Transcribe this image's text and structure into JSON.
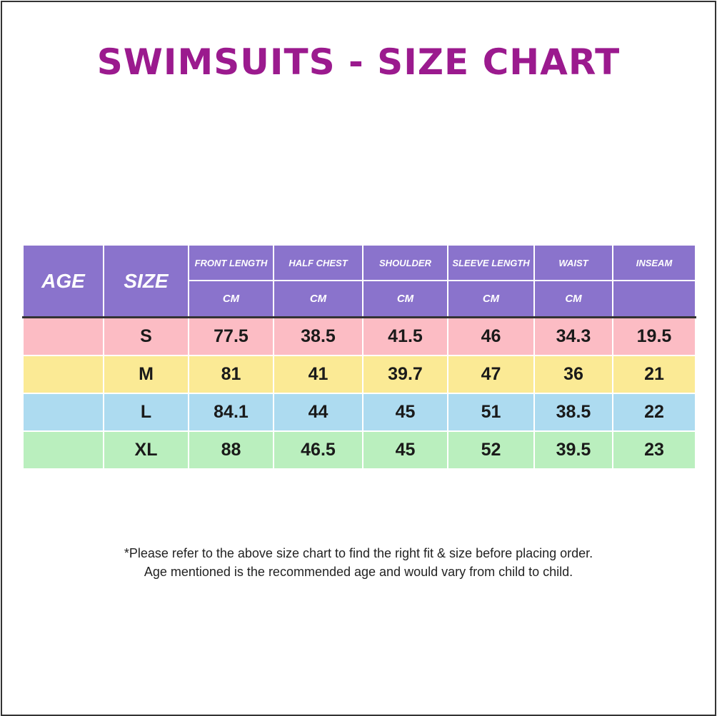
{
  "title": "SWIMSUITS - SIZE CHART",
  "colors": {
    "title": "#9b1a8e",
    "header": "#8a73cc",
    "row_s": "#fcbcc4",
    "row_m": "#fbea95",
    "row_l": "#addbf0",
    "row_xl": "#baefbe"
  },
  "table": {
    "age_header": "AGE",
    "size_header": "SIZE",
    "columns": [
      {
        "label": "FRONT LENGTH",
        "unit": "CM"
      },
      {
        "label": "HALF CHEST",
        "unit": "CM"
      },
      {
        "label": "SHOULDER",
        "unit": "CM"
      },
      {
        "label": "SLEEVE LENGTH",
        "unit": "CM"
      },
      {
        "label": "WAIST",
        "unit": "CM"
      },
      {
        "label": "INSEAM",
        "unit": ""
      }
    ],
    "rows": [
      {
        "age": "",
        "size": "S",
        "values": [
          "77.5",
          "38.5",
          "41.5",
          "46",
          "34.3",
          "19.5"
        ]
      },
      {
        "age": "",
        "size": "M",
        "values": [
          "81",
          "41",
          "39.7",
          "47",
          "36",
          "21"
        ]
      },
      {
        "age": "",
        "size": "L",
        "values": [
          "84.1",
          "44",
          "45",
          "51",
          "38.5",
          "22"
        ]
      },
      {
        "age": "",
        "size": "XL",
        "values": [
          "88",
          "46.5",
          "45",
          "52",
          "39.5",
          "23"
        ]
      }
    ]
  },
  "notes": [
    "*Please refer to the above size chart to find the right fit & size before placing order.",
    "Age mentioned is the recommended age and would vary from child to child."
  ]
}
